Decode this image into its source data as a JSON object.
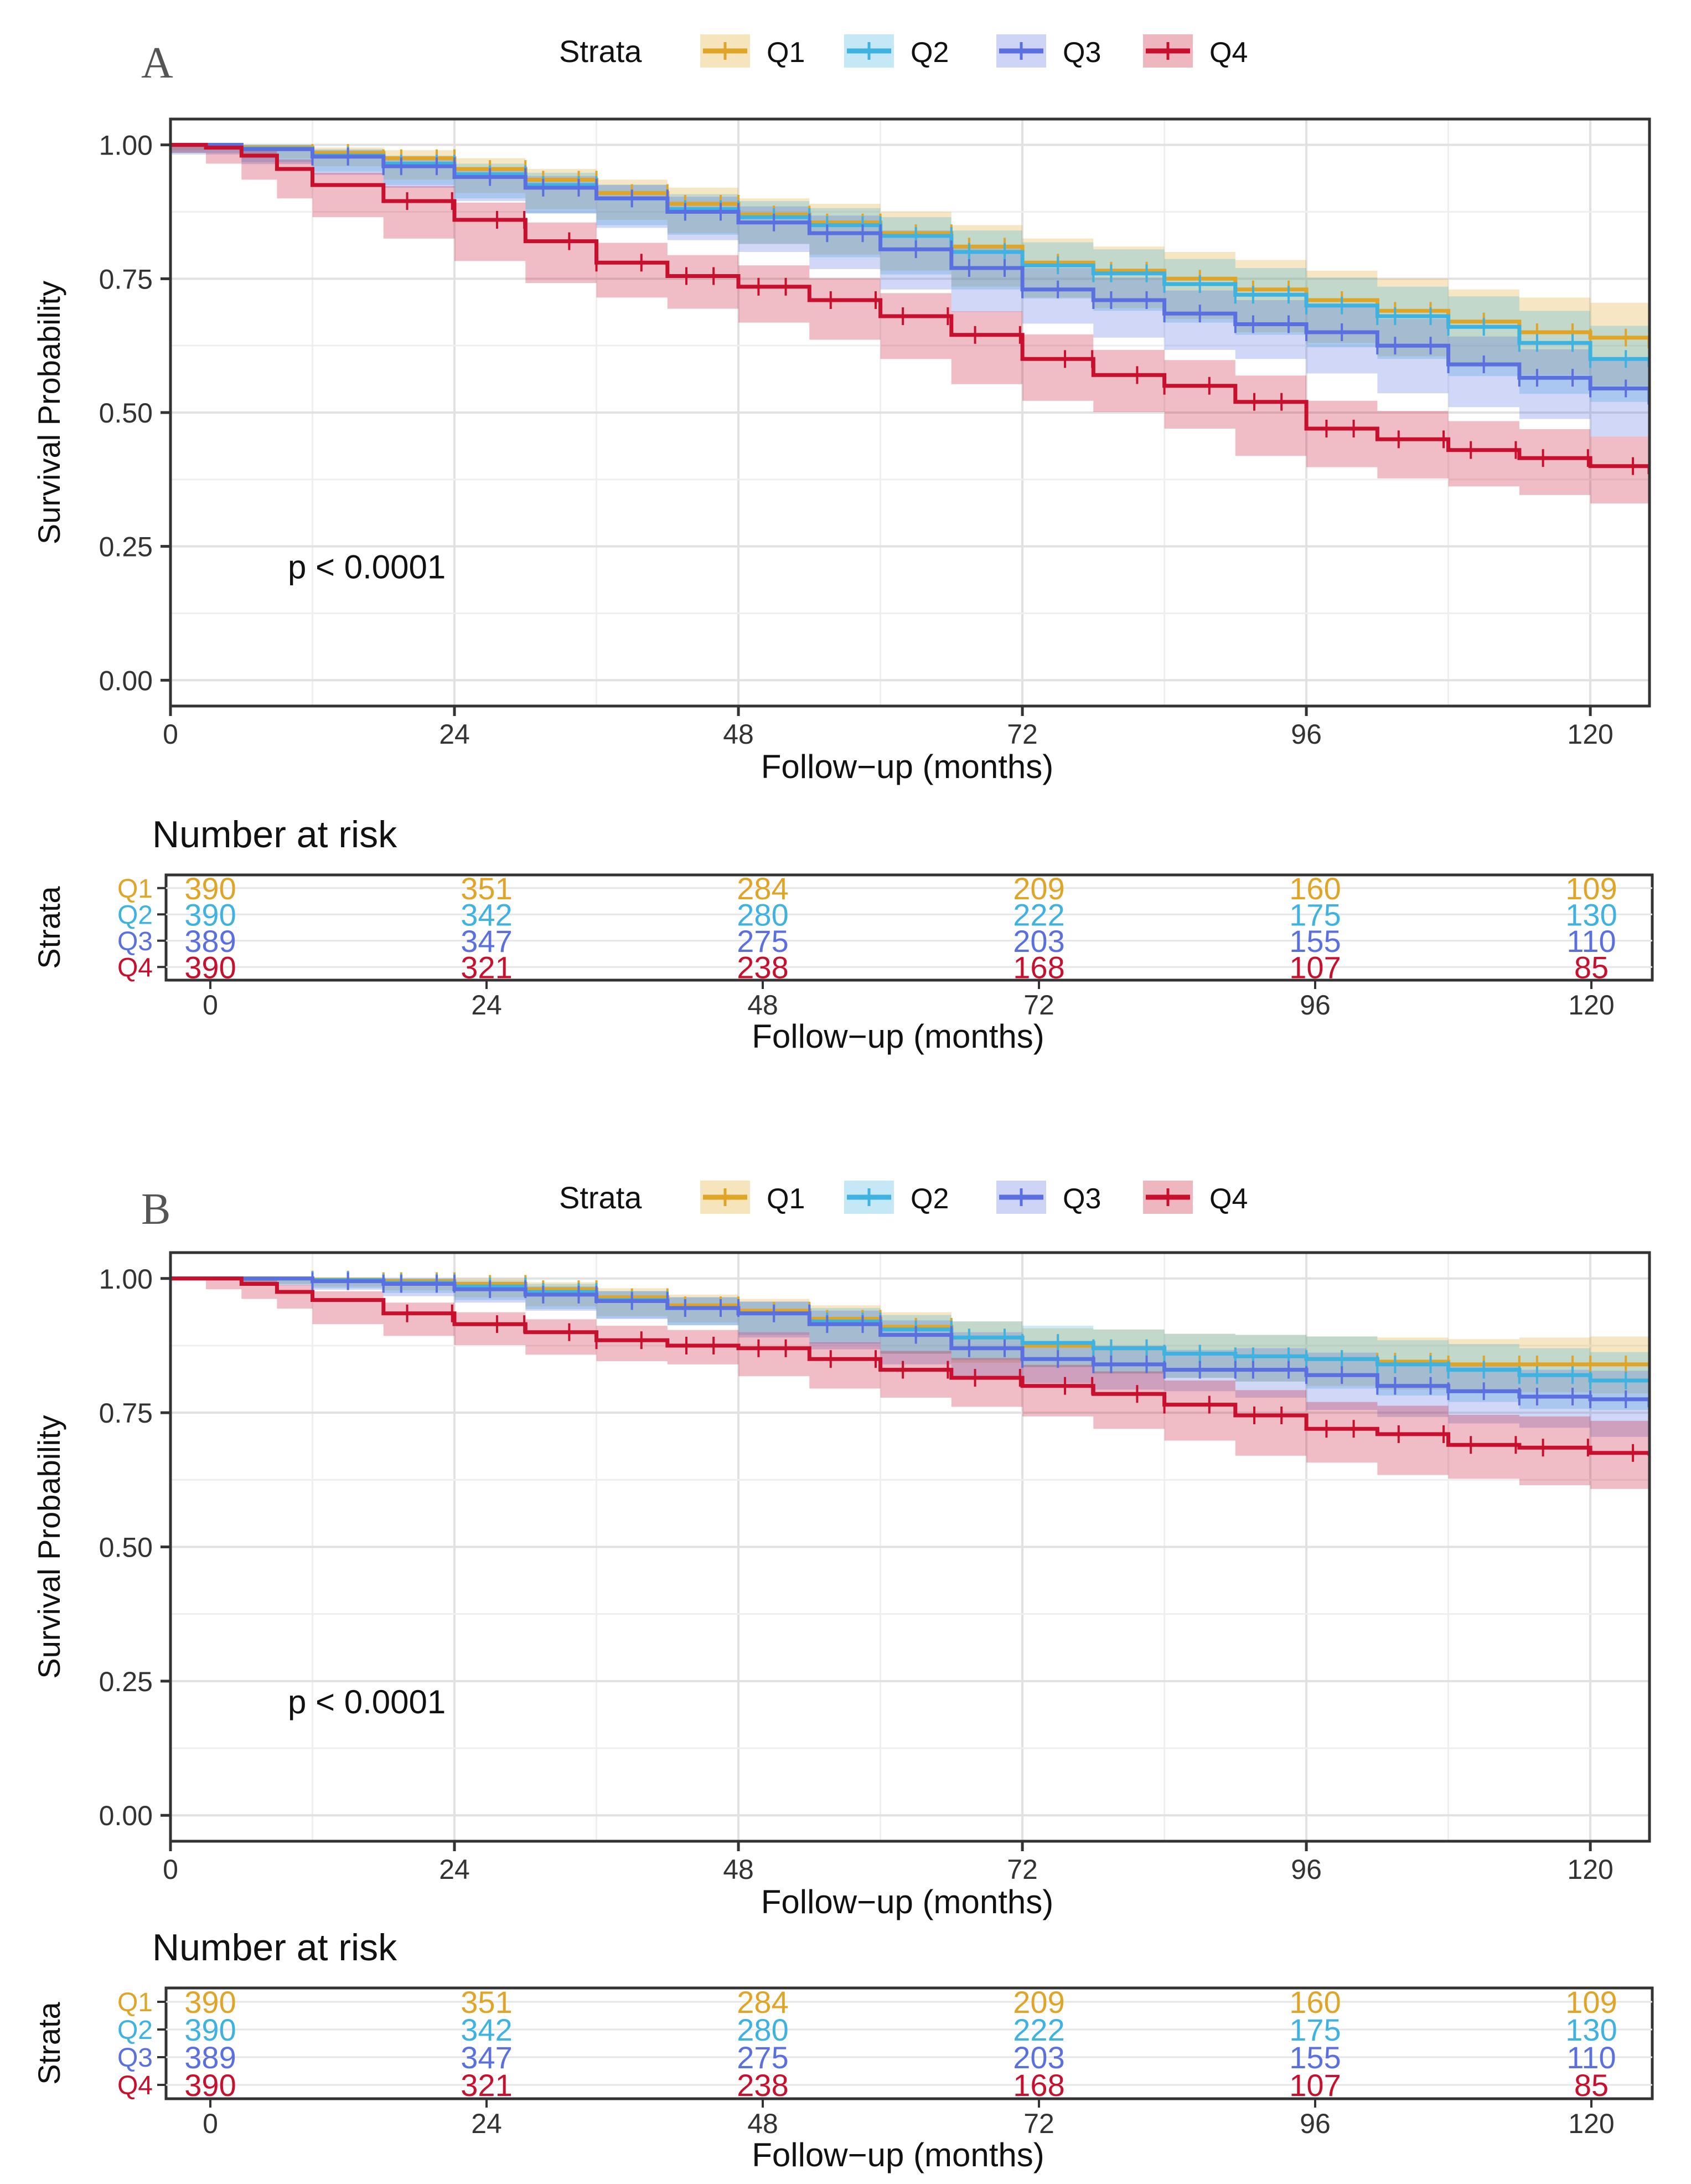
{
  "chart_data": [
    {
      "type": "line",
      "panel_label": "A",
      "legend_title": "Strata",
      "xlabel": "Follow−up (months)",
      "ylabel": "Survival Probability",
      "x_ticks": [
        0,
        24,
        48,
        72,
        96,
        120
      ],
      "y_ticks": [
        "0.00",
        "0.25",
        "0.50",
        "0.75",
        "1.00"
      ],
      "xlim": [
        0,
        125
      ],
      "ylim": [
        0,
        1
      ],
      "pvalue": "p < 0.0001",
      "series": [
        {
          "name": "Q1",
          "color": "#E0A526",
          "x": [
            0,
            6,
            12,
            18,
            24,
            30,
            36,
            42,
            48,
            54,
            60,
            66,
            72,
            78,
            84,
            90,
            96,
            102,
            108,
            114,
            120,
            125
          ],
          "values": [
            1.0,
            0.995,
            0.985,
            0.975,
            0.955,
            0.935,
            0.91,
            0.89,
            0.87,
            0.855,
            0.835,
            0.81,
            0.78,
            0.765,
            0.75,
            0.73,
            0.71,
            0.69,
            0.67,
            0.65,
            0.64,
            0.62
          ],
          "lower": [
            1.0,
            0.99,
            0.975,
            0.96,
            0.935,
            0.91,
            0.88,
            0.86,
            0.835,
            0.815,
            0.795,
            0.765,
            0.735,
            0.715,
            0.695,
            0.675,
            0.65,
            0.63,
            0.605,
            0.585,
            0.57,
            0.55
          ],
          "upper": [
            1.0,
            1.0,
            0.995,
            0.99,
            0.975,
            0.955,
            0.935,
            0.92,
            0.9,
            0.89,
            0.875,
            0.85,
            0.825,
            0.81,
            0.8,
            0.785,
            0.765,
            0.75,
            0.73,
            0.715,
            0.705,
            0.69
          ]
        },
        {
          "name": "Q2",
          "color": "#3EB2E0",
          "x": [
            0,
            6,
            12,
            18,
            24,
            30,
            36,
            42,
            48,
            54,
            60,
            66,
            72,
            78,
            84,
            90,
            96,
            102,
            108,
            114,
            120,
            125
          ],
          "values": [
            1.0,
            0.993,
            0.98,
            0.965,
            0.945,
            0.925,
            0.9,
            0.88,
            0.865,
            0.85,
            0.83,
            0.8,
            0.775,
            0.76,
            0.74,
            0.72,
            0.7,
            0.68,
            0.66,
            0.63,
            0.6,
            0.585
          ],
          "lower": [
            1.0,
            0.985,
            0.968,
            0.95,
            0.925,
            0.9,
            0.872,
            0.85,
            0.832,
            0.815,
            0.79,
            0.758,
            0.73,
            0.713,
            0.69,
            0.668,
            0.645,
            0.622,
            0.6,
            0.568,
            0.535,
            0.52
          ],
          "upper": [
            1.0,
            1.0,
            0.992,
            0.98,
            0.965,
            0.948,
            0.926,
            0.908,
            0.895,
            0.882,
            0.865,
            0.84,
            0.818,
            0.805,
            0.787,
            0.77,
            0.752,
            0.735,
            0.717,
            0.69,
            0.662,
            0.648
          ]
        },
        {
          "name": "Q3",
          "color": "#5B70E0",
          "x": [
            0,
            6,
            12,
            18,
            24,
            30,
            36,
            42,
            48,
            54,
            60,
            66,
            72,
            78,
            84,
            90,
            96,
            102,
            108,
            114,
            120,
            125
          ],
          "values": [
            1.0,
            0.992,
            0.978,
            0.96,
            0.94,
            0.92,
            0.9,
            0.875,
            0.855,
            0.835,
            0.805,
            0.77,
            0.73,
            0.71,
            0.685,
            0.665,
            0.65,
            0.625,
            0.59,
            0.565,
            0.545,
            0.515
          ],
          "lower": [
            1.0,
            0.982,
            0.964,
            0.944,
            0.92,
            0.895,
            0.872,
            0.845,
            0.822,
            0.8,
            0.768,
            0.73,
            0.688,
            0.666,
            0.64,
            0.617,
            0.6,
            0.573,
            0.536,
            0.51,
            0.488,
            0.455
          ],
          "upper": [
            1.0,
            1.0,
            0.99,
            0.976,
            0.958,
            0.942,
            0.925,
            0.903,
            0.885,
            0.868,
            0.84,
            0.808,
            0.77,
            0.752,
            0.728,
            0.71,
            0.697,
            0.675,
            0.642,
            0.618,
            0.6,
            0.572
          ]
        },
        {
          "name": "Q4",
          "color": "#C8102E",
          "x": [
            0,
            3,
            6,
            9,
            12,
            18,
            24,
            30,
            36,
            42,
            48,
            54,
            60,
            66,
            72,
            78,
            84,
            90,
            96,
            102,
            108,
            114,
            120,
            125
          ],
          "values": [
            1.0,
            0.995,
            0.98,
            0.955,
            0.925,
            0.895,
            0.86,
            0.82,
            0.78,
            0.755,
            0.735,
            0.71,
            0.68,
            0.645,
            0.6,
            0.57,
            0.55,
            0.52,
            0.47,
            0.45,
            0.43,
            0.415,
            0.4,
            0.385
          ],
          "lower": [
            1.0,
            0.985,
            0.965,
            0.935,
            0.9,
            0.865,
            0.825,
            0.783,
            0.742,
            0.715,
            0.694,
            0.668,
            0.636,
            0.6,
            0.553,
            0.522,
            0.501,
            0.47,
            0.419,
            0.398,
            0.377,
            0.362,
            0.346,
            0.33
          ],
          "upper": [
            1.0,
            1.0,
            0.993,
            0.973,
            0.948,
            0.923,
            0.892,
            0.855,
            0.817,
            0.794,
            0.775,
            0.751,
            0.723,
            0.689,
            0.646,
            0.617,
            0.598,
            0.569,
            0.522,
            0.503,
            0.484,
            0.469,
            0.455,
            0.44
          ]
        }
      ],
      "risk_table": {
        "title": "Number at risk",
        "ylabel": "Strata",
        "xlabel": "Follow−up (months)",
        "x_ticks": [
          0,
          24,
          48,
          72,
          96,
          120
        ],
        "rows": [
          {
            "name": "Q1",
            "color": "#E0A526",
            "values": [
              390,
              351,
              284,
              209,
              160,
              109
            ]
          },
          {
            "name": "Q2",
            "color": "#3EB2E0",
            "values": [
              390,
              342,
              280,
              222,
              175,
              130
            ]
          },
          {
            "name": "Q3",
            "color": "#5B70E0",
            "values": [
              389,
              347,
              275,
              203,
              155,
              110
            ]
          },
          {
            "name": "Q4",
            "color": "#C8102E",
            "values": [
              390,
              321,
              238,
              168,
              107,
              85
            ]
          }
        ]
      }
    },
    {
      "type": "line",
      "panel_label": "B",
      "legend_title": "Strata",
      "xlabel": "Follow−up (months)",
      "ylabel": "Survival Probability",
      "x_ticks": [
        0,
        24,
        48,
        72,
        96,
        120
      ],
      "y_ticks": [
        "0.00",
        "0.25",
        "0.50",
        "0.75",
        "1.00"
      ],
      "xlim": [
        0,
        125
      ],
      "ylim": [
        0,
        1
      ],
      "pvalue": "p < 0.0001",
      "series": [
        {
          "name": "Q1",
          "color": "#E0A526",
          "x": [
            0,
            6,
            12,
            18,
            24,
            30,
            36,
            42,
            48,
            54,
            60,
            66,
            72,
            78,
            84,
            90,
            96,
            102,
            108,
            114,
            120,
            125
          ],
          "values": [
            1.0,
            1.0,
            0.998,
            0.995,
            0.99,
            0.98,
            0.965,
            0.95,
            0.94,
            0.925,
            0.91,
            0.89,
            0.875,
            0.87,
            0.86,
            0.855,
            0.85,
            0.845,
            0.84,
            0.84,
            0.84,
            0.84
          ],
          "lower": [
            1.0,
            1.0,
            0.99,
            0.985,
            0.978,
            0.965,
            0.948,
            0.93,
            0.918,
            0.9,
            0.883,
            0.86,
            0.843,
            0.835,
            0.823,
            0.815,
            0.808,
            0.8,
            0.793,
            0.79,
            0.788,
            0.786
          ],
          "upper": [
            1.0,
            1.0,
            1.0,
            1.0,
            1.0,
            0.993,
            0.982,
            0.97,
            0.962,
            0.95,
            0.937,
            0.92,
            0.907,
            0.905,
            0.897,
            0.895,
            0.892,
            0.89,
            0.887,
            0.89,
            0.892,
            0.894
          ]
        },
        {
          "name": "Q2",
          "color": "#3EB2E0",
          "x": [
            0,
            6,
            12,
            18,
            24,
            30,
            36,
            42,
            48,
            54,
            60,
            66,
            72,
            78,
            84,
            90,
            96,
            102,
            108,
            114,
            120,
            125
          ],
          "values": [
            1.0,
            1.0,
            0.997,
            0.992,
            0.985,
            0.975,
            0.96,
            0.945,
            0.935,
            0.92,
            0.905,
            0.89,
            0.88,
            0.87,
            0.86,
            0.855,
            0.85,
            0.84,
            0.83,
            0.82,
            0.81,
            0.81
          ],
          "lower": [
            1.0,
            1.0,
            0.989,
            0.982,
            0.973,
            0.96,
            0.943,
            0.925,
            0.913,
            0.895,
            0.878,
            0.86,
            0.848,
            0.835,
            0.823,
            0.815,
            0.808,
            0.795,
            0.782,
            0.77,
            0.757,
            0.755
          ],
          "upper": [
            1.0,
            1.0,
            1.0,
            1.0,
            0.997,
            0.99,
            0.977,
            0.965,
            0.957,
            0.945,
            0.932,
            0.92,
            0.912,
            0.905,
            0.897,
            0.895,
            0.892,
            0.885,
            0.878,
            0.87,
            0.863,
            0.865
          ]
        },
        {
          "name": "Q3",
          "color": "#5B70E0",
          "x": [
            0,
            6,
            12,
            18,
            24,
            30,
            36,
            42,
            48,
            54,
            60,
            66,
            72,
            78,
            84,
            90,
            96,
            102,
            108,
            114,
            120,
            125
          ],
          "values": [
            1.0,
            1.0,
            0.995,
            0.99,
            0.98,
            0.97,
            0.958,
            0.945,
            0.935,
            0.915,
            0.895,
            0.87,
            0.85,
            0.84,
            0.83,
            0.83,
            0.82,
            0.8,
            0.79,
            0.78,
            0.775,
            0.76
          ],
          "lower": [
            1.0,
            1.0,
            0.987,
            0.979,
            0.967,
            0.955,
            0.94,
            0.925,
            0.913,
            0.89,
            0.868,
            0.84,
            0.818,
            0.805,
            0.793,
            0.79,
            0.778,
            0.755,
            0.742,
            0.73,
            0.722,
            0.705
          ],
          "upper": [
            1.0,
            1.0,
            1.0,
            1.0,
            0.993,
            0.985,
            0.976,
            0.965,
            0.957,
            0.94,
            0.922,
            0.9,
            0.882,
            0.875,
            0.867,
            0.87,
            0.862,
            0.845,
            0.838,
            0.83,
            0.828,
            0.815
          ]
        },
        {
          "name": "Q4",
          "color": "#C8102E",
          "x": [
            0,
            3,
            6,
            9,
            12,
            18,
            24,
            30,
            36,
            42,
            48,
            54,
            60,
            66,
            72,
            78,
            84,
            90,
            96,
            102,
            108,
            114,
            120,
            125
          ],
          "values": [
            1.0,
            1.0,
            0.99,
            0.975,
            0.96,
            0.935,
            0.915,
            0.9,
            0.885,
            0.875,
            0.87,
            0.85,
            0.83,
            0.815,
            0.8,
            0.785,
            0.765,
            0.745,
            0.72,
            0.71,
            0.69,
            0.685,
            0.675,
            0.67
          ],
          "lower": [
            1.0,
            1.0,
            0.98,
            0.962,
            0.944,
            0.915,
            0.893,
            0.876,
            0.858,
            0.846,
            0.84,
            0.818,
            0.795,
            0.778,
            0.761,
            0.743,
            0.72,
            0.698,
            0.67,
            0.657,
            0.634,
            0.627,
            0.615,
            0.608
          ],
          "upper": [
            1.0,
            1.0,
            1.0,
            0.988,
            0.976,
            0.955,
            0.937,
            0.924,
            0.912,
            0.904,
            0.9,
            0.882,
            0.865,
            0.852,
            0.839,
            0.827,
            0.81,
            0.792,
            0.77,
            0.763,
            0.746,
            0.743,
            0.735,
            0.732
          ]
        }
      ],
      "risk_table": {
        "title": "Number at risk",
        "ylabel": "Strata",
        "xlabel": "Follow−up (months)",
        "x_ticks": [
          0,
          24,
          48,
          72,
          96,
          120
        ],
        "rows": [
          {
            "name": "Q1",
            "color": "#E0A526",
            "values": [
              390,
              351,
              284,
              209,
              160,
              109
            ]
          },
          {
            "name": "Q2",
            "color": "#3EB2E0",
            "values": [
              390,
              342,
              280,
              222,
              175,
              130
            ]
          },
          {
            "name": "Q3",
            "color": "#5B70E0",
            "values": [
              389,
              347,
              275,
              203,
              155,
              110
            ]
          },
          {
            "name": "Q4",
            "color": "#C8102E",
            "values": [
              390,
              321,
              238,
              168,
              107,
              85
            ]
          }
        ]
      }
    }
  ]
}
